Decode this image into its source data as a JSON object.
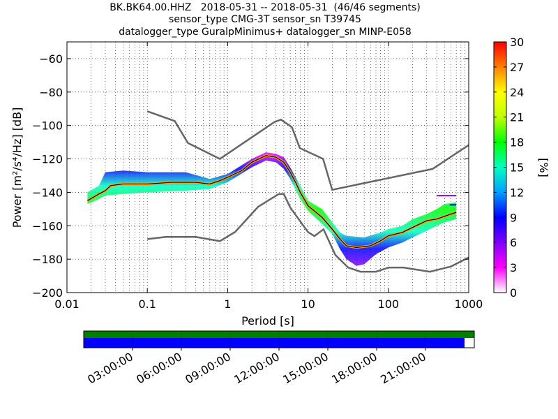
{
  "chart_data": {
    "type": "heatmap",
    "title_lines": [
      "BK.BK64.00.HHZ   2018-05-31 -- 2018-05-31  (46/46 segments)",
      "sensor_type CMG-3T sensor_sn T39745",
      "datalogger_type GuralpMinimus+ datalogger_sn MINP-E058"
    ],
    "xlabel": "Period [s]",
    "ylabel": "Power [m²/s⁴/Hz] [dB]",
    "xscale": "log",
    "xlim": [
      0.01,
      1000
    ],
    "ylim": [
      -200,
      -50
    ],
    "x_ticks": [
      0.01,
      0.1,
      1,
      10,
      100,
      1000
    ],
    "x_tick_labels": [
      "0.01",
      "0.1",
      "1",
      "10",
      "100",
      "1000"
    ],
    "y_ticks": [
      -200,
      -180,
      -160,
      -140,
      -120,
      -100,
      -80,
      -60
    ],
    "y_tick_labels": [
      "−200",
      "−180",
      "−160",
      "−140",
      "−120",
      "−100",
      "−80",
      "−60"
    ],
    "grid": "dotted",
    "colorbar": {
      "label": "[%]",
      "min": 0,
      "max": 30,
      "ticks": [
        0,
        3,
        6,
        9,
        12,
        15,
        18,
        21,
        24,
        27,
        30
      ],
      "tick_labels": [
        "0",
        "3",
        "6",
        "9",
        "12",
        "15",
        "18",
        "21",
        "24",
        "27",
        "30"
      ]
    },
    "noise_models": [
      {
        "name": "NHNM",
        "color": "#666666",
        "points": [
          [
            0.1,
            -91.5
          ],
          [
            0.22,
            -97.4
          ],
          [
            0.32,
            -110.5
          ],
          [
            0.8,
            -120
          ],
          [
            3.8,
            -98
          ],
          [
            4.6,
            -96.5
          ],
          [
            6.3,
            -101
          ],
          [
            7.9,
            -113.5
          ],
          [
            15.4,
            -120
          ],
          [
            20,
            -138.5
          ],
          [
            354.8,
            -126
          ],
          [
            10000,
            -80
          ]
        ]
      },
      {
        "name": "NLNM",
        "color": "#666666",
        "points": [
          [
            0.1,
            -168
          ],
          [
            0.17,
            -166.7
          ],
          [
            0.4,
            -166.7
          ],
          [
            0.8,
            -169.2
          ],
          [
            1.24,
            -163.7
          ],
          [
            2.4,
            -148.6
          ],
          [
            4.3,
            -141.1
          ],
          [
            5,
            -141
          ],
          [
            6,
            -149
          ],
          [
            10,
            -163.8
          ],
          [
            12,
            -166.2
          ],
          [
            15.6,
            -162.1
          ],
          [
            21.9,
            -177.5
          ],
          [
            31.6,
            -185
          ],
          [
            45,
            -187.5
          ],
          [
            70,
            -187.5
          ],
          [
            101,
            -185
          ],
          [
            154,
            -185
          ],
          [
            328,
            -187.5
          ],
          [
            600,
            -184.4
          ],
          [
            1000,
            -179
          ]
        ]
      }
    ],
    "mode_curve": {
      "color": "#000000",
      "points": [
        [
          0.018,
          -145
        ],
        [
          0.025,
          -141
        ],
        [
          0.03,
          -139
        ],
        [
          0.035,
          -136
        ],
        [
          0.05,
          -135
        ],
        [
          0.1,
          -135
        ],
        [
          0.2,
          -134
        ],
        [
          0.4,
          -134
        ],
        [
          0.6,
          -135
        ],
        [
          0.8,
          -133
        ],
        [
          1,
          -131
        ],
        [
          1.5,
          -127
        ],
        [
          2,
          -122
        ],
        [
          3,
          -118
        ],
        [
          4,
          -119
        ],
        [
          5,
          -122
        ],
        [
          6,
          -128
        ],
        [
          7,
          -134
        ],
        [
          8,
          -140
        ],
        [
          10,
          -148
        ],
        [
          15,
          -155
        ],
        [
          20,
          -162
        ],
        [
          25,
          -168
        ],
        [
          30,
          -172
        ],
        [
          40,
          -173
        ],
        [
          60,
          -172
        ],
        [
          80,
          -169
        ],
        [
          100,
          -166
        ],
        [
          150,
          -164
        ],
        [
          200,
          -161
        ],
        [
          300,
          -157
        ],
        [
          400,
          -156
        ],
        [
          600,
          -153
        ],
        [
          700,
          -152
        ]
      ]
    },
    "pdf_band": {
      "description_free": true,
      "upper": [
        [
          0.018,
          -140
        ],
        [
          0.025,
          -136
        ],
        [
          0.03,
          -128
        ],
        [
          0.05,
          -127
        ],
        [
          0.1,
          -128
        ],
        [
          0.3,
          -128
        ],
        [
          0.6,
          -132
        ],
        [
          1,
          -129
        ],
        [
          2,
          -120
        ],
        [
          3,
          -116
        ],
        [
          4,
          -117
        ],
        [
          5,
          -119
        ],
        [
          6,
          -125
        ],
        [
          8,
          -136
        ],
        [
          10,
          -145
        ],
        [
          15,
          -150
        ],
        [
          20,
          -158
        ],
        [
          25,
          -164
        ],
        [
          30,
          -166
        ],
        [
          50,
          -167
        ],
        [
          80,
          -164
        ],
        [
          100,
          -162
        ],
        [
          150,
          -160
        ],
        [
          200,
          -156
        ],
        [
          300,
          -153
        ],
        [
          400,
          -150
        ],
        [
          500,
          -147
        ],
        [
          700,
          -146
        ]
      ],
      "lower": [
        [
          0.018,
          -147
        ],
        [
          0.025,
          -144
        ],
        [
          0.03,
          -142
        ],
        [
          0.05,
          -141
        ],
        [
          0.1,
          -140
        ],
        [
          0.3,
          -139
        ],
        [
          0.6,
          -138
        ],
        [
          1,
          -134
        ],
        [
          2,
          -125
        ],
        [
          3,
          -121
        ],
        [
          4,
          -122
        ],
        [
          5,
          -126
        ],
        [
          6,
          -132
        ],
        [
          8,
          -144
        ],
        [
          10,
          -151
        ],
        [
          15,
          -159
        ],
        [
          20,
          -165
        ],
        [
          25,
          -174
        ],
        [
          30,
          -180
        ],
        [
          40,
          -184
        ],
        [
          50,
          -183
        ],
        [
          70,
          -177
        ],
        [
          100,
          -173
        ],
        [
          150,
          -170
        ],
        [
          200,
          -167
        ],
        [
          300,
          -163
        ],
        [
          400,
          -160
        ],
        [
          500,
          -158
        ],
        [
          700,
          -156
        ]
      ]
    },
    "extra_segments": [
      {
        "x": [
          400,
          700
        ],
        "y": -142,
        "color": "#8b00ff"
      },
      {
        "x": [
          580,
          700
        ],
        "y": -147.5,
        "color": "#0000ff"
      }
    ],
    "timeline": {
      "tick_labels": [
        "03:00:00",
        "06:00:00",
        "09:00:00",
        "12:00:00",
        "15:00:00",
        "18:00:00",
        "21:00:00"
      ],
      "top_bar_color": "#008000",
      "bottom_bar_color": "#0000ff",
      "coverage_fraction": 0.975
    }
  }
}
